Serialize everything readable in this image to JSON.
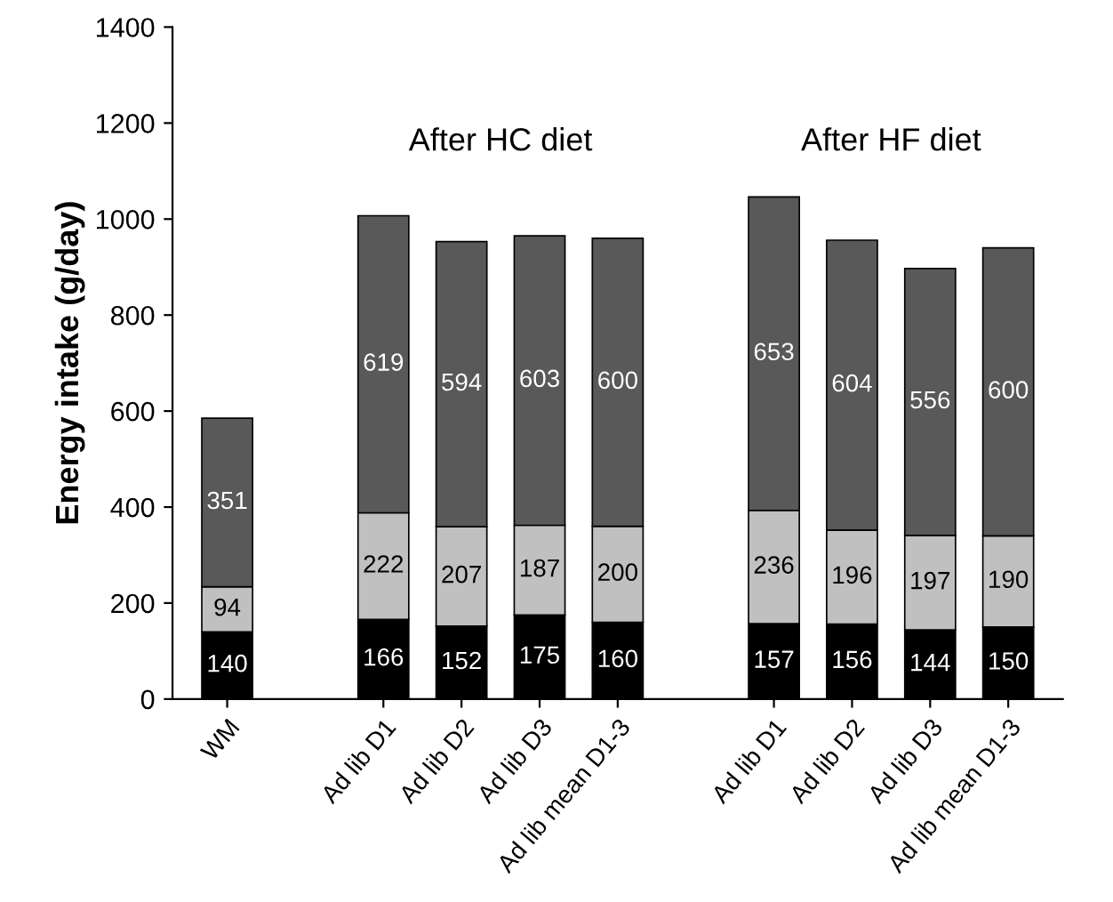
{
  "chart_data": {
    "type": "bar",
    "stacked": true,
    "data_labels": true,
    "ylabel": "Energy intake (g/day)",
    "categories": [
      "WM",
      null,
      "Ad lib D1",
      "Ad lib D2",
      "Ad lib D3",
      "Ad lib mean D1-3",
      null,
      "Ad lib D1",
      "Ad lib D2",
      "Ad lib D3",
      "Ad lib mean D1-3"
    ],
    "series": [
      {
        "color": "#000000",
        "values": [
          140,
          null,
          166,
          152,
          175,
          160,
          null,
          157,
          156,
          144,
          150
        ]
      },
      {
        "color": "#c0c0c0",
        "values": [
          94,
          null,
          222,
          207,
          187,
          200,
          null,
          236,
          196,
          197,
          190
        ]
      },
      {
        "color": "#595959",
        "values": [
          351,
          null,
          619,
          594,
          603,
          600,
          null,
          653,
          604,
          556,
          600
        ]
      }
    ],
    "annotations": [
      "After HC diet",
      "After HF diet"
    ],
    "ylim": [
      0,
      1400
    ],
    "yticks": [
      0,
      200,
      400,
      600,
      800,
      1000,
      1200,
      1400
    ],
    "grid": false,
    "legend": false
  }
}
